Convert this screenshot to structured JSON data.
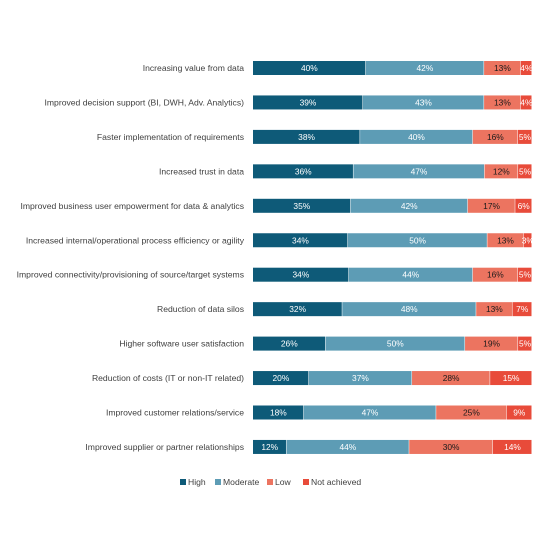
{
  "chart_data": {
    "type": "bar",
    "orientation": "horizontal",
    "stacked": true,
    "categories": [
      "Increasing value from data",
      "Improved decision support (BI, DWH, Adv. Analytics)",
      "Faster implementation of requirements",
      "Increased trust in data",
      "Improved business user empowerment for data & analytics",
      "Increased internal/operational process efficiency or agility",
      "Improved connectivity/provisioning of source/target systems",
      "Reduction of data silos",
      "Higher software user satisfaction",
      "Reduction of costs (IT or non-IT related)",
      "Improved customer relations/service",
      "Improved supplier or partner relationships"
    ],
    "series": [
      {
        "name": "High",
        "color": "#0e5a78",
        "values": [
          40,
          39,
          38,
          36,
          35,
          34,
          34,
          32,
          26,
          20,
          18,
          12
        ]
      },
      {
        "name": "Moderate",
        "color": "#5d9cb5",
        "values": [
          42,
          43,
          40,
          47,
          42,
          50,
          44,
          48,
          50,
          37,
          47,
          44
        ]
      },
      {
        "name": "Low",
        "color": "#ec7460",
        "values": [
          13,
          13,
          16,
          12,
          17,
          13,
          16,
          13,
          19,
          28,
          25,
          30
        ]
      },
      {
        "name": "Not achieved",
        "color": "#e84b3a",
        "values": [
          4,
          4,
          5,
          5,
          6,
          3,
          5,
          7,
          5,
          15,
          9,
          14
        ]
      }
    ],
    "value_suffix": "%",
    "legend_position": "bottom",
    "grid": false
  }
}
